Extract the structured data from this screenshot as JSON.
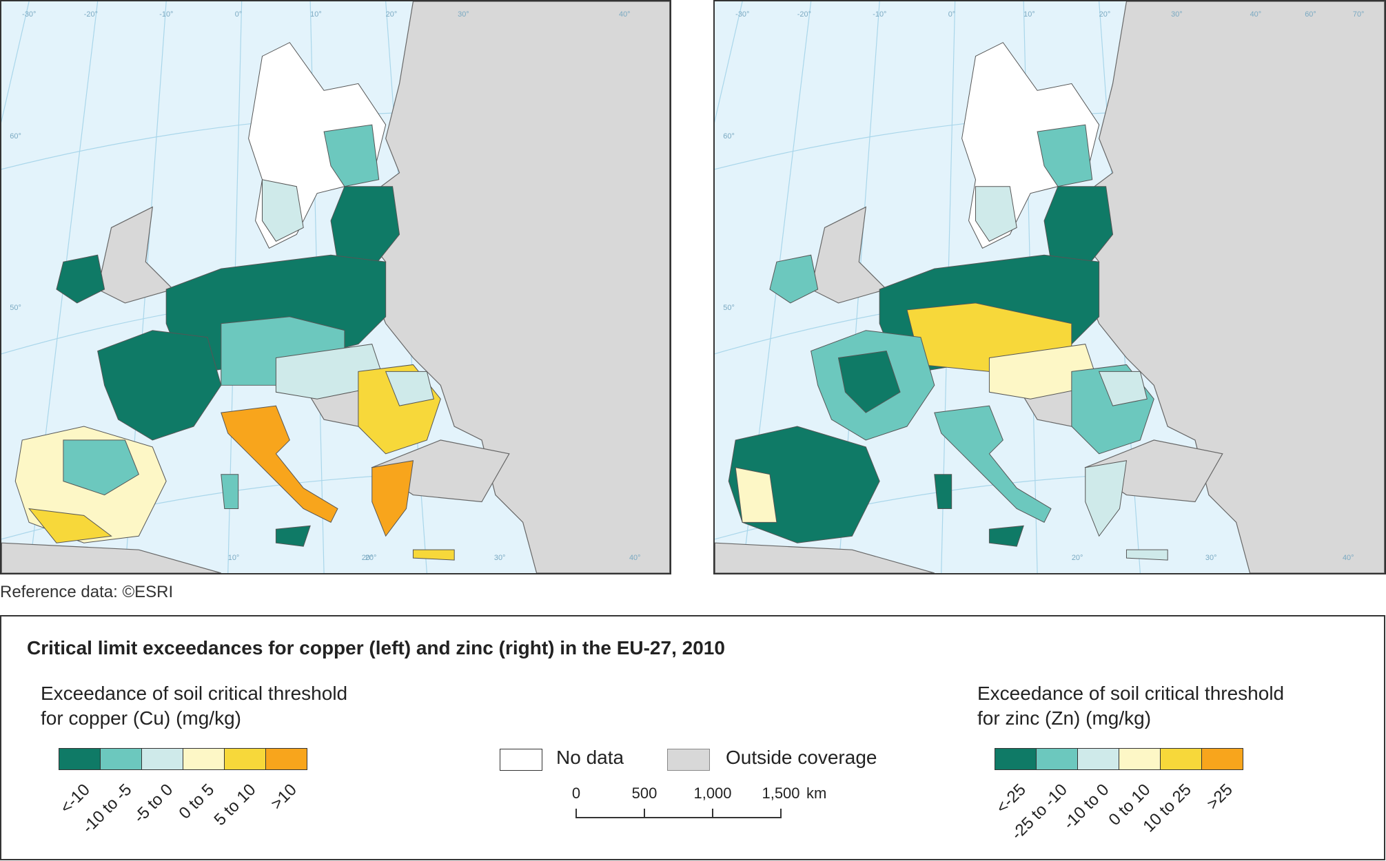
{
  "maps": {
    "left": {
      "graticule_labels": [
        "-30°",
        "-20°",
        "-10°",
        "0°",
        "10°",
        "20°",
        "30°",
        "40°",
        "60°",
        "50°",
        "20°",
        "30°",
        "10°",
        "20°",
        "40°"
      ]
    },
    "right": {
      "graticule_labels": [
        "-30°",
        "-20°",
        "-10°",
        "0°",
        "10°",
        "20°",
        "30°",
        "40°",
        "60°",
        "50°",
        "20°",
        "30°",
        "40°",
        "60°",
        "70°"
      ]
    }
  },
  "reference": "Reference data: ©ESRI",
  "legend": {
    "title": "Critical limit exceedances for copper (left) and zinc (right) in the EU-27, 2010",
    "copper": {
      "heading_line1": "Exceedance of soil critical threshold",
      "heading_line2": "for copper (Cu) (mg/kg)",
      "classes": [
        "<-10",
        "-10 to -5",
        "-5 to 0",
        "0 to 5",
        "5 to 10",
        ">10"
      ]
    },
    "zinc": {
      "heading_line1": "Exceedance of soil critical threshold",
      "heading_line2": "for zinc (Zn) (mg/kg)",
      "classes": [
        "<-25",
        "-25 to -10",
        "-10 to 0",
        "0 to 10",
        "10 to 25",
        ">25"
      ]
    },
    "no_data": "No data",
    "outside": "Outside coverage",
    "scale": {
      "labels": [
        "0",
        "500",
        "1,000",
        "1,500"
      ],
      "unit": "km"
    },
    "colors": [
      "#0f7a66",
      "#6cc8be",
      "#cfeaea",
      "#fdf7c6",
      "#f7d83a",
      "#f8a51c"
    ]
  },
  "colors": {
    "sea": "#e3f3fb",
    "outside": "#d8d8d8",
    "nodata": "#ffffff",
    "border": "#555555"
  }
}
